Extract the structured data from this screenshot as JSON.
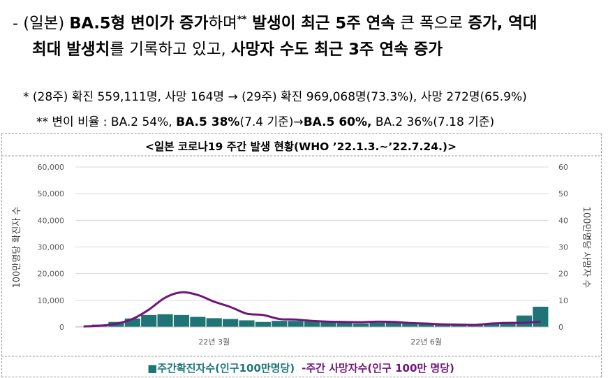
{
  "headline": {
    "line1_parts": [
      {
        "t": "- (일본) ",
        "b": false
      },
      {
        "t": "BA.5형 변이가 증가",
        "b": true
      },
      {
        "t": "하며",
        "b": false
      },
      {
        "t": "**",
        "b": true,
        "sup": true
      },
      {
        "t": " 발생이 최근 5주 연속",
        "b": true
      },
      {
        "t": " 큰 폭으로 ",
        "b": false
      },
      {
        "t": "증가, 역대",
        "b": true
      }
    ],
    "line2_parts": [
      {
        "t": "최대 발생치",
        "b": true
      },
      {
        "t": "를 기록하고 있고, ",
        "b": false
      },
      {
        "t": "사망자 수도 최근 3주 연속 증가",
        "b": true
      }
    ]
  },
  "notes": {
    "note1": "*  (28주) 확진 559,111명, 사망 164명 → (29주) 확진 969,068명(73.3%), 사망 272명(65.9%)",
    "note2_parts": [
      {
        "t": "**  변이 비율 : BA.2 54%, ",
        "b": false
      },
      {
        "t": "BA.5 38%",
        "b": true
      },
      {
        "t": "(7.4 기준)→",
        "b": false
      },
      {
        "t": "BA.5 60%,",
        "b": true
      },
      {
        "t": " BA.2 36%(7.18 기준)",
        "b": false
      }
    ]
  },
  "chart_data": {
    "type": "bar+line",
    "title": "<일본 코로나19 주간 발생 현황(WHO ’22.1.3.~’22.7.24.)>",
    "ylabel_left": "100만명당 확진자 수",
    "ylabel_right": "100만명당 사망자 수",
    "ylim_left": [
      0,
      60000
    ],
    "ylim_right": [
      0,
      60
    ],
    "yticks_left": [
      "0",
      "10,000",
      "20,000",
      "30,000",
      "40,000",
      "50,000",
      "60,000"
    ],
    "yticks_right": [
      "0",
      "10",
      "20",
      "30",
      "40",
      "50",
      "60"
    ],
    "x_ticklabels": [
      {
        "label": "22년 3월",
        "index": 8
      },
      {
        "label": "22년 6월",
        "index": 21
      }
    ],
    "grid": true,
    "legend_position": "bottom",
    "bar_color": "#1f7575",
    "line_color": "#70157a",
    "series": [
      {
        "name": "주간확진자수(인구100만명당)",
        "kind": "bar",
        "axis": "left",
        "values": [
          150,
          900,
          1900,
          3200,
          4500,
          4800,
          4500,
          3800,
          3300,
          3000,
          2500,
          1900,
          2300,
          2300,
          2100,
          2100,
          1800,
          1300,
          1600,
          1700,
          1300,
          1300,
          1000,
          900,
          700,
          1100,
          1900,
          4300,
          7600
        ]
      },
      {
        "name": "주간 사망자수(인구 100만 명당)",
        "kind": "line",
        "axis": "right",
        "values": [
          0.2,
          0.5,
          1.2,
          3.0,
          6.5,
          11.0,
          13.0,
          12.0,
          9.5,
          7.5,
          5.0,
          4.5,
          3.0,
          2.8,
          2.3,
          2.0,
          1.9,
          1.8,
          2.0,
          1.9,
          1.5,
          1.3,
          1.0,
          0.9,
          0.8,
          1.3,
          1.5,
          1.6,
          2.0
        ]
      }
    ]
  },
  "legend": {
    "bar_marker": "■",
    "bar_label": "주간확진자수(인구100만명당)",
    "line_marker": "-",
    "line_label": "주간 사망자수(인구 100만 명당)"
  }
}
